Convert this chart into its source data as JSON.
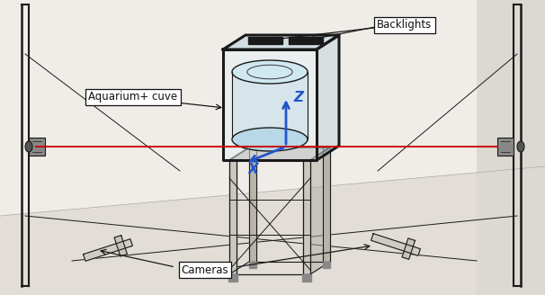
{
  "fig_width": 6.06,
  "fig_height": 3.28,
  "dpi": 100,
  "bg_color": "#ffffff",
  "label_backlights": "Backlights",
  "label_aquarium": "Aquarium+ cuve",
  "label_cameras": "Cameras",
  "label_z": "Z",
  "label_x": "X",
  "laser_color": "#cc0000",
  "arrow_color": "#2255cc",
  "line_color": "#1a1a1a",
  "box_color": "#ffffff",
  "box_edge": "#111111",
  "wall_color": "#e8e6e0",
  "floor_color": "#d8d5ce",
  "stand_color": "#c8c4bc",
  "aq_glass_color": "#ddeeff"
}
